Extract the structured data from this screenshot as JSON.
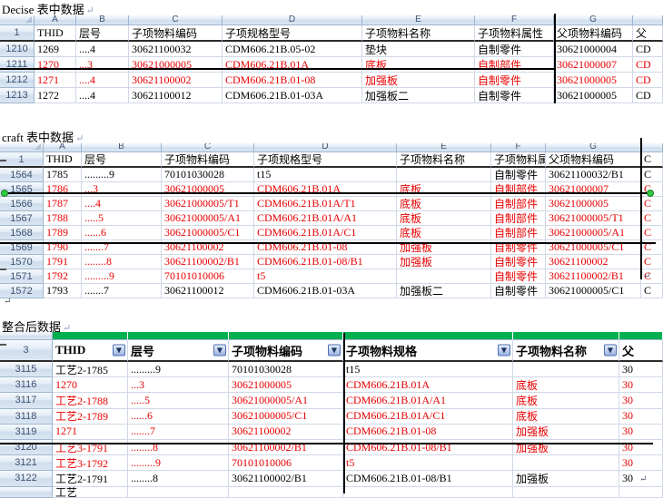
{
  "titles": {
    "t1": "Decise 表中数据",
    "t2": "craft 表中数据",
    "t3": "整合后数据"
  },
  "paragraph_mark": "↵",
  "colors": {
    "red_text": "#e80000",
    "green_bar": "#00b050",
    "selection_handle": "#2ecc40",
    "annotation_line": "#000000"
  },
  "tables": {
    "decise": {
      "column_letters": [
        "A",
        "B",
        "C",
        "D",
        "E",
        "F",
        "G"
      ],
      "header_row_number": "1",
      "column_headers": [
        "THID",
        "层号",
        "子项物料编码",
        "子项规格型号",
        "子项物料名称",
        "子项物料属性",
        "父项物料编码",
        "父"
      ],
      "rows": [
        {
          "row_number": "1210",
          "red": false,
          "cells": [
            "1269",
            "....4",
            "30621100032",
            "CDM606.21B.05-02",
            "垫块",
            "自制零件",
            "30621000004",
            "CD"
          ]
        },
        {
          "row_number": "1211",
          "red": true,
          "cells": [
            "1270",
            "...3",
            "30621000005",
            "CDM606.21B.01A",
            "底板",
            "自制部件",
            "30621000007",
            "CD"
          ]
        },
        {
          "row_number": "1212",
          "red": true,
          "cells": [
            "1271",
            "....4",
            "30621100002",
            "CDM606.21B.01-08",
            "加强板",
            "自制零件",
            "30621000005",
            "CD"
          ]
        },
        {
          "row_number": "1213",
          "red": false,
          "cells": [
            "1272",
            "....4",
            "30621100012",
            "CDM606.21B.01-03A",
            "加强板二",
            "自制零件",
            "30621000005",
            "CD"
          ]
        }
      ]
    },
    "craft": {
      "column_letters": [
        "A",
        "B",
        "C",
        "D",
        "E",
        "F",
        "G"
      ],
      "header_row_number": "1",
      "column_headers": [
        "THID",
        "层号",
        "子项物料编码",
        "子项规格型号",
        "子项物料名称",
        "子项物料属",
        "父项物料编码",
        "C"
      ],
      "rows": [
        {
          "row_number": "1564",
          "red": false,
          "cells": [
            "1785",
            ".........9",
            "70101030028",
            "t15",
            "",
            "自制零件",
            "30621100032/B1",
            "C"
          ]
        },
        {
          "row_number": "1565",
          "red": true,
          "cells": [
            "1786",
            "...3",
            "30621000005",
            "CDM606.21B.01A",
            "底板",
            "自制部件",
            "30621000007",
            "C"
          ]
        },
        {
          "row_number": "1566",
          "red": true,
          "cells": [
            "1787",
            "....4",
            "30621000005/T1",
            "CDM606.21B.01A/T1",
            "底板",
            "自制部件",
            "30621000005",
            "C"
          ]
        },
        {
          "row_number": "1567",
          "red": true,
          "cells": [
            "1788",
            ".....5",
            "30621000005/A1",
            "CDM606.21B.01A/A1",
            "底板",
            "自制部件",
            "30621000005/T1",
            "C"
          ]
        },
        {
          "row_number": "1568",
          "red": true,
          "cells": [
            "1789",
            "......6",
            "30621000005/C1",
            "CDM606.21B.01A/C1",
            "底板",
            "自制部件",
            "30621000005/A1",
            "C"
          ]
        },
        {
          "row_number": "1569",
          "red": true,
          "cells": [
            "1790",
            ".......7",
            "30621100002",
            "CDM606.21B.01-08",
            "加强板",
            "自制零件",
            "30621000005/C1",
            "C"
          ]
        },
        {
          "row_number": "1570",
          "red": true,
          "cells": [
            "1791",
            "........8",
            "30621100002/B1",
            "CDM606.21B.01-08/B1",
            "加强板",
            "自制零件",
            "30621100002",
            "C"
          ]
        },
        {
          "row_number": "1571",
          "red": true,
          "cells": [
            "1792",
            ".........9",
            "70101010006",
            "t5",
            "",
            "自制零件",
            "30621100002/B1",
            "C"
          ]
        },
        {
          "row_number": "1572",
          "red": false,
          "cells": [
            "1793",
            ".......7",
            "30621100012",
            "CDM606.21B.01-03A",
            "加强板二",
            "自制零件",
            "30621000005/C1",
            "C"
          ]
        }
      ]
    },
    "merged": {
      "header_row_number": "3",
      "column_headers": [
        "THID",
        "层号",
        "子项物料编码",
        "子项物料规格",
        "子项物料名称",
        "父"
      ],
      "filter_columns": [
        0,
        1,
        2,
        3,
        4
      ],
      "rows": [
        {
          "row_number": "3115",
          "red": false,
          "cells": [
            "工艺2-1785",
            ".........9",
            "70101030028",
            "t15",
            "",
            "30"
          ]
        },
        {
          "row_number": "3116",
          "red": true,
          "cells": [
            "1270",
            "...3",
            "30621000005",
            "CDM606.21B.01A",
            "底板",
            "30"
          ]
        },
        {
          "row_number": "3117",
          "red": true,
          "cells": [
            "工艺2-1788",
            ".....5",
            "30621000005/A1",
            "CDM606.21B.01A/A1",
            "底板",
            "30"
          ]
        },
        {
          "row_number": "3118",
          "red": true,
          "cells": [
            "工艺2-1789",
            "......6",
            "30621000005/C1",
            "CDM606.21B.01A/C1",
            "底板",
            "30"
          ]
        },
        {
          "row_number": "3119",
          "red": true,
          "cells": [
            "1271",
            ".......7",
            "30621100002",
            "CDM606.21B.01-08",
            "加强板",
            "30"
          ]
        },
        {
          "row_number": "3120",
          "red": true,
          "cells": [
            "工艺3-1791",
            "........8",
            "30621100002/B1",
            "CDM606.21B.01-08/B1",
            "加强板",
            "30"
          ]
        },
        {
          "row_number": "3121",
          "red": true,
          "cells": [
            "工艺3-1792",
            ".........9",
            "70101010006",
            "t5",
            "",
            "30"
          ]
        },
        {
          "row_number": "3122",
          "red": false,
          "cells": [
            "工艺2-1791",
            "........8",
            "30621100002/B1",
            "CDM606.21B.01-08/B1",
            "加强板",
            "30"
          ]
        }
      ],
      "partial_row": {
        "row_number": "",
        "cells": [
          "工艺",
          "",
          "",
          "",
          "",
          ""
        ]
      }
    }
  }
}
